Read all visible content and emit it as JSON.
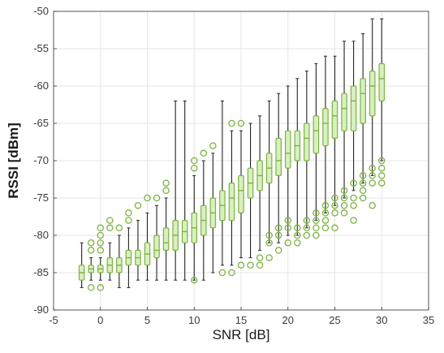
{
  "chart_data": {
    "type": "box",
    "xlabel": "SNR [dB]",
    "ylabel": "RSSI [dBm]",
    "xlim": [
      -5,
      35
    ],
    "ylim": [
      -90,
      -50
    ],
    "x_ticks": [
      -5,
      0,
      5,
      10,
      15,
      20,
      25,
      30,
      35
    ],
    "y_ticks": [
      -90,
      -85,
      -80,
      -75,
      -70,
      -65,
      -60,
      -55,
      -50
    ],
    "grid": true,
    "colors": {
      "box_fill": "#d8efc0",
      "box_edge": "#7cb342",
      "whisker": "#222222",
      "outlier": "#7cb342",
      "grid": "#e6e6e6"
    },
    "boxes": [
      {
        "x": -2,
        "q1": -86,
        "median": -85,
        "q3": -84,
        "lo": -87,
        "hi": -81,
        "outliers": []
      },
      {
        "x": -1,
        "q1": -85,
        "median": -84.5,
        "q3": -84,
        "lo": -86,
        "hi": -83,
        "outliers": [
          -87,
          -82,
          -81
        ]
      },
      {
        "x": 0,
        "q1": -85,
        "median": -84.5,
        "q3": -84,
        "lo": -86,
        "hi": -83,
        "outliers": [
          -87,
          -82,
          -81,
          -80,
          -79
        ]
      },
      {
        "x": 1,
        "q1": -85,
        "median": -84,
        "q3": -83,
        "lo": -86,
        "hi": -81,
        "outliers": [
          -79,
          -78
        ]
      },
      {
        "x": 2,
        "q1": -85,
        "median": -84,
        "q3": -83,
        "lo": -87,
        "hi": -80,
        "outliers": [
          -79
        ]
      },
      {
        "x": 3,
        "q1": -84,
        "median": -83,
        "q3": -82,
        "lo": -87,
        "hi": -79,
        "outliers": [
          -78,
          -77
        ]
      },
      {
        "x": 4,
        "q1": -84,
        "median": -83,
        "q3": -82,
        "lo": -86,
        "hi": -78,
        "outliers": [
          -76
        ]
      },
      {
        "x": 5,
        "q1": -84,
        "median": -82.5,
        "q3": -81,
        "lo": -86,
        "hi": -77,
        "outliers": [
          -75
        ]
      },
      {
        "x": 6,
        "q1": -83,
        "median": -82,
        "q3": -80,
        "lo": -86,
        "hi": -76,
        "outliers": [
          -75
        ]
      },
      {
        "x": 7,
        "q1": -82,
        "median": -81,
        "q3": -79,
        "lo": -86,
        "hi": -75,
        "outliers": [
          -74,
          -73
        ]
      },
      {
        "x": 8,
        "q1": -82,
        "median": -80,
        "q3": -78,
        "lo": -86,
        "hi": -62,
        "outliers": []
      },
      {
        "x": 9,
        "q1": -81,
        "median": -79.5,
        "q3": -78,
        "lo": -86,
        "hi": -62,
        "outliers": []
      },
      {
        "x": 10,
        "q1": -81,
        "median": -79,
        "q3": -77,
        "lo": -86,
        "hi": -72,
        "outliers": [
          -86,
          -71,
          -70
        ]
      },
      {
        "x": 11,
        "q1": -80,
        "median": -78,
        "q3": -76,
        "lo": -86,
        "hi": -70,
        "outliers": [
          -69
        ]
      },
      {
        "x": 12,
        "q1": -79,
        "median": -77,
        "q3": -75,
        "lo": -85,
        "hi": -69,
        "outliers": [
          -68
        ]
      },
      {
        "x": 13,
        "q1": -78,
        "median": -76,
        "q3": -74,
        "lo": -84,
        "hi": -62,
        "outliers": [
          -85
        ]
      },
      {
        "x": 14,
        "q1": -78,
        "median": -75,
        "q3": -73,
        "lo": -84,
        "hi": -66,
        "outliers": [
          -85,
          -65
        ]
      },
      {
        "x": 15,
        "q1": -77,
        "median": -74,
        "q3": -72,
        "lo": -83,
        "hi": -66,
        "outliers": [
          -84,
          -65
        ]
      },
      {
        "x": 16,
        "q1": -75,
        "median": -73,
        "q3": -71,
        "lo": -83,
        "hi": -65,
        "outliers": [
          -84
        ]
      },
      {
        "x": 17,
        "q1": -74,
        "median": -72,
        "q3": -70,
        "lo": -82,
        "hi": -64,
        "outliers": [
          -84,
          -83
        ]
      },
      {
        "x": 18,
        "q1": -73,
        "median": -71,
        "q3": -69,
        "lo": -81,
        "hi": -62,
        "outliers": [
          -83,
          -81,
          -80
        ]
      },
      {
        "x": 19,
        "q1": -72,
        "median": -70,
        "q3": -67,
        "lo": -81,
        "hi": -61,
        "outliers": [
          -82,
          -80,
          -79
        ]
      },
      {
        "x": 20,
        "q1": -71,
        "median": -69,
        "q3": -66,
        "lo": -80,
        "hi": -60,
        "outliers": [
          -81,
          -79,
          -78
        ]
      },
      {
        "x": 21,
        "q1": -70,
        "median": -68,
        "q3": -66,
        "lo": -80,
        "hi": -59,
        "outliers": [
          -81,
          -80,
          -79
        ]
      },
      {
        "x": 22,
        "q1": -70,
        "median": -67,
        "q3": -65,
        "lo": -79,
        "hi": -58,
        "outliers": [
          -80,
          -79,
          -78
        ]
      },
      {
        "x": 23,
        "q1": -69,
        "median": -66,
        "q3": -64,
        "lo": -78,
        "hi": -57,
        "outliers": [
          -80,
          -79,
          -78,
          -77
        ]
      },
      {
        "x": 24,
        "q1": -68,
        "median": -65,
        "q3": -63,
        "lo": -77,
        "hi": -56,
        "outliers": [
          -79,
          -78,
          -77,
          -76
        ]
      },
      {
        "x": 25,
        "q1": -67,
        "median": -64,
        "q3": -62,
        "lo": -76,
        "hi": -56,
        "outliers": [
          -79,
          -77,
          -76,
          -75
        ]
      },
      {
        "x": 26,
        "q1": -66,
        "median": -63,
        "q3": -61,
        "lo": -75,
        "hi": -54,
        "outliers": [
          -77,
          -76,
          -75,
          -74
        ]
      },
      {
        "x": 27,
        "q1": -66,
        "median": -62,
        "q3": -60,
        "lo": -74,
        "hi": -54,
        "outliers": [
          -78,
          -76,
          -75,
          -73
        ]
      },
      {
        "x": 28,
        "q1": -65,
        "median": -61,
        "q3": -59,
        "lo": -73,
        "hi": -53,
        "outliers": [
          -75,
          -74,
          -73,
          -72
        ]
      },
      {
        "x": 29,
        "q1": -64,
        "median": -60,
        "q3": -58,
        "lo": -72,
        "hi": -51,
        "outliers": [
          -76,
          -73,
          -72,
          -71
        ]
      },
      {
        "x": 30,
        "q1": -62,
        "median": -59,
        "q3": -57,
        "lo": -70,
        "hi": -51,
        "outliers": [
          -73,
          -72,
          -71,
          -70
        ]
      }
    ]
  }
}
